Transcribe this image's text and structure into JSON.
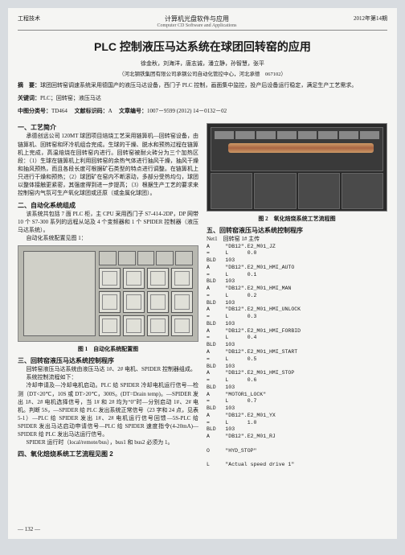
{
  "header": {
    "left": "工程技术",
    "center_cn": "计算机光盘软件与应用",
    "center_en": "Computer CD Software and Applications",
    "right": "2012年第14期"
  },
  "title": "PLC 控制液压马达系统在球团回转窑的应用",
  "authors": "徐金秋，刘海洋，唐志诚，潘立静，孙智慧，张平",
  "affiliation": "（河北钢铁集团有限公司承钢公司自动化管控中心，河北承德　067102）",
  "abstract_label": "摘　要：",
  "abstract": "球团回转窑调速系统采用德国产的液压马达设备，西门子 PLC 控制，画面集中监控，投产后设备运行稳定，满足生产工艺需求。",
  "keywords_label": "关键词：",
  "keywords": "PLC；回转窑；液压马达",
  "clc_label": "中图分类号：",
  "clc": "TD464",
  "doccode_label": "文献标识码：",
  "doccode": "A",
  "articleno_label": "文章编号：",
  "articleno": "1007－9599 (2012) 14－0132－02",
  "sec1_h": "一、工艺简介",
  "sec1_p1": "承德创远公司 120MT 球团项目焙烧工艺采用链箅机—回转窑设备，由链箅机、回转窑和环冷机组合完成。生球的干燥、脱水和预热过程在链箅机上完成，高温焙烧在回转窑内进行。回转窑被耐火砖分为三个加热区段：（1）生球在链箅机上利用回转窑的余热气体进行抽风干燥，抽风干燥和抽风预热，而且各段长度可根据矿石类型的特点进行调整。在链箅机上只进行干燥和预热；（2）球团矿在窑内不断滚动，多部分受热均匀，球团以整体接触更紧密，其强度得到进一步提高；（3）根据生产工艺的要求来控制窑内气氛可生产氧化球团或还原（或金属化球团）。",
  "sec2_h": "二、自动化系统组成",
  "sec2_p1": "该系统共包括 7 面 PLC 柜，主 CPU 采用西门子 S7-414-2DP，DP 网带 10 个 S7-300 系列的远程从站及 4 个变频器和 1 个 SPIDER 控制器（液压马达系统）。",
  "sec2_p2": "自动化系统配置见图 1：",
  "fig1_caption": "图 1　自动化系统配置图",
  "sec3_h": "三、回转窑液压马达系统控制程序",
  "sec3_p1": "回转窑液压马达系统由液压马达 1#、2# 电机、SPIDER 控制器组成。",
  "sec3_p2": "系统控制流程如下：",
  "sec3_p3": "冷却申请及—冷却电机启动。PLC 给 SPIDER 冷却电机运行信号—检测（DT<20℃，10S 或 DT>20℃，300S。(DT=Drain temp)。—SPIDER 发出 1#、2# 电机选择信号，当 1# 和 2# 均为“0”时—分别启动 1#、2# 电机。判断 5S，—SPIDER 给 PLC 发出系统正常信号（23 字和 24 点，见表 5-1）—PLC 给 SPIDER 发出 1#、2# 电机运行信号回馈—5S-PLC 给 SPIDER 发出马达启动申请信号—PLC 给 SPIDER 速度指令(4-20mA)—SPIDER 给 PLC 发出马达运行信号。",
  "sec3_p4": "SPIDER 运行时（local/remote/bus），bus1 和 bus2 必须为 1。",
  "sec4_h": "四、氧化焙烧系统工艺流程见图 2",
  "fig2_caption": "图 2　氧化焙烧系统工艺流程图",
  "sec5_h": "五、回转窑液压马达系统控制程序",
  "sec5_sub": "Net1　回转窑 1# 主传",
  "code_lines": [
    "A     \"DB12\".E2_M01_JZ",
    "=     L      0.0",
    "BLD   103",
    "A     \"DB12\".E2_M01_HMI_AUTO",
    "=     L      0.1",
    "BLD   103",
    "A     \"DB12\".E2_M01_HMI_MAN",
    "=     L      0.2",
    "BLD   103",
    "A     \"DB12\".E2_M01_HMI_UNLOCK",
    "=     L      0.3",
    "BLD   103",
    "A     \"DB12\".E2_M01_HMI_FORBID",
    "=     L      0.4",
    "BLD   103",
    "A     \"DB12\".E2_M01_HMI_START",
    "=     L      0.5",
    "BLD   103",
    "A     \"DB12\".E2_M01_HMI_STOP",
    "=     L      0.6",
    "BLD   103",
    "A     \"MOTOR1_LOCK\"",
    "=     L      0.7",
    "BLD   103",
    "A     \"DB12\".E2_M01_YX",
    "=     L      1.0",
    "BLD   103",
    "A     \"DB12\".E2_M01_RJ",
    "",
    "O     \"HYD_STOP\"",
    "",
    "L     \"Actual speed drive 1\""
  ],
  "page_num": "— 132 —"
}
